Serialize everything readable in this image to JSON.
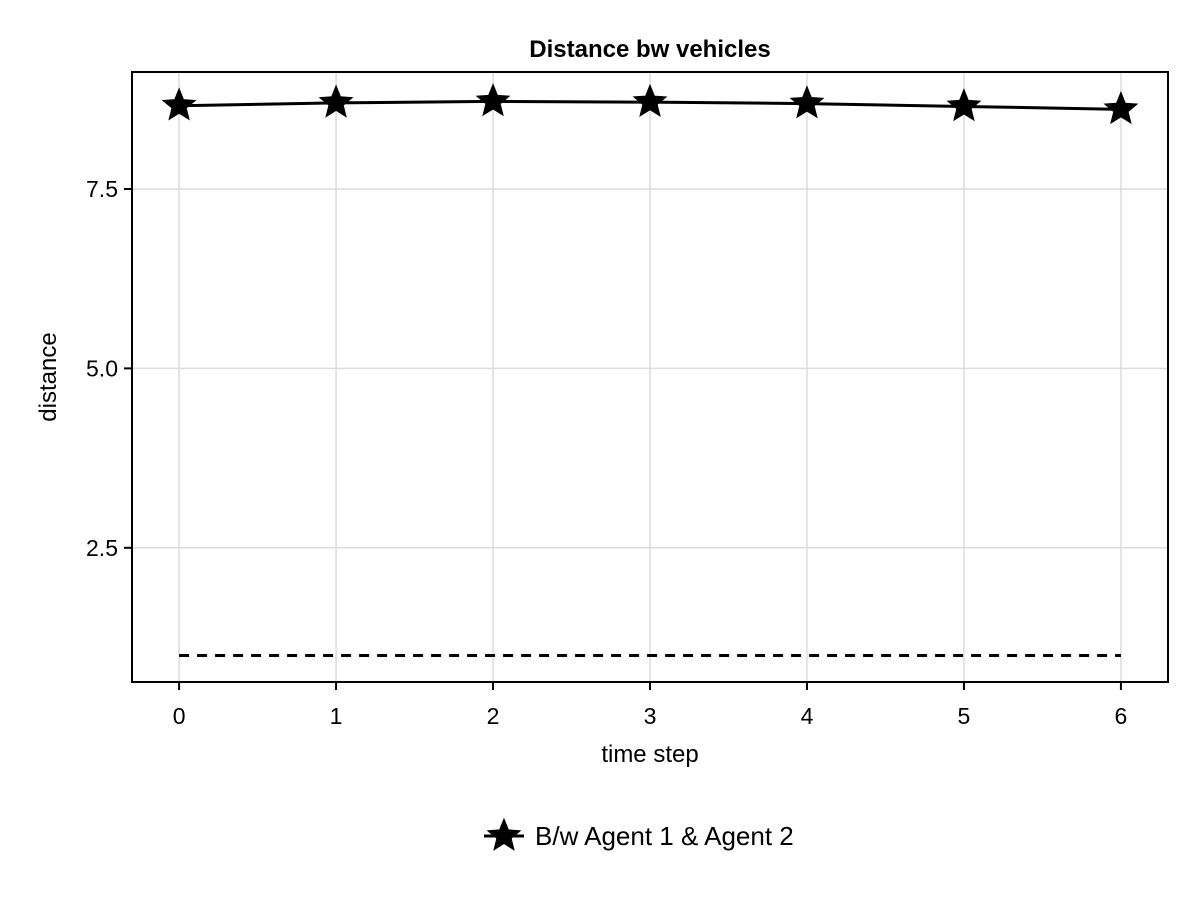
{
  "chart_data": {
    "type": "line",
    "title": "Distance bw vehicles",
    "xlabel": "time step",
    "ylabel": "distance",
    "xlim": [
      -0.3,
      6.3
    ],
    "ylim": [
      0.63,
      9.13
    ],
    "x_ticks": [
      0,
      1,
      2,
      3,
      4,
      5,
      6
    ],
    "x_tick_labels": [
      "0",
      "1",
      "2",
      "3",
      "4",
      "5",
      "6"
    ],
    "y_ticks": [
      2.5,
      5.0,
      7.5
    ],
    "y_tick_labels": [
      "2.5",
      "5.0",
      "7.5"
    ],
    "grid": true,
    "legend_placement": "bottom-center",
    "series": [
      {
        "name": "B/w Agent 1 & Agent 2",
        "x": [
          0,
          1,
          2,
          3,
          4,
          5,
          6
        ],
        "values": [
          8.66,
          8.7,
          8.72,
          8.71,
          8.69,
          8.65,
          8.61
        ],
        "color": "#000000",
        "marker": "star",
        "line_style": "solid"
      },
      {
        "x": [
          0,
          6
        ],
        "values": [
          1.0,
          1.0
        ],
        "color": "#000000",
        "marker": "none",
        "line_style": "dashed"
      }
    ]
  }
}
